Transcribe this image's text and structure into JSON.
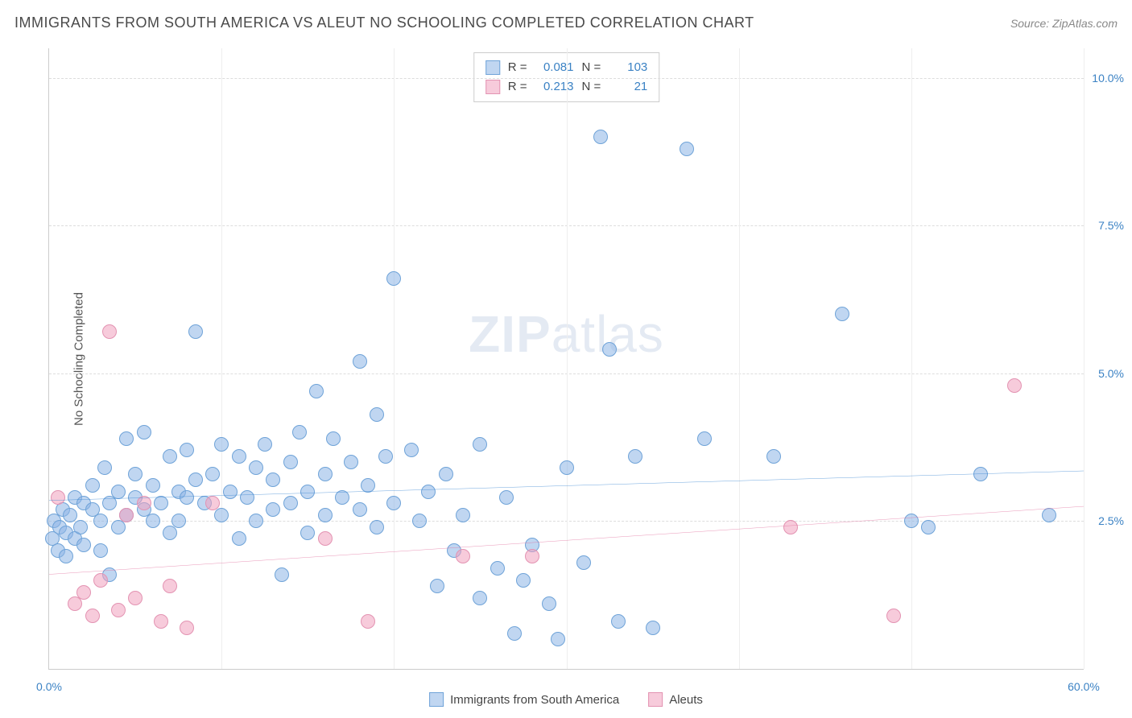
{
  "title": "IMMIGRANTS FROM SOUTH AMERICA VS ALEUT NO SCHOOLING COMPLETED CORRELATION CHART",
  "source_label": "Source: ZipAtlas.com",
  "watermark": {
    "prefix": "ZIP",
    "suffix": "atlas"
  },
  "y_axis_title": "No Schooling Completed",
  "chart": {
    "type": "scatter",
    "xlim": [
      0,
      60
    ],
    "ylim": [
      0,
      10.5
    ],
    "x_ticks": [
      0,
      10,
      20,
      30,
      40,
      50,
      60
    ],
    "y_ticks": [
      2.5,
      5.0,
      7.5,
      10.0
    ],
    "x_tick_labels": [
      "0.0%",
      "",
      "",
      "",
      "",
      "",
      "60.0%"
    ],
    "y_tick_labels": [
      "2.5%",
      "5.0%",
      "7.5%",
      "10.0%"
    ],
    "background_color": "#ffffff",
    "grid_color": "#dddddd",
    "axis_color": "#cccccc",
    "tick_label_color": "#3b82c4",
    "marker_radius": 9,
    "series": [
      {
        "name": "Immigrants from South America",
        "fill_color": "rgba(140,180,230,0.55)",
        "stroke_color": "#6fa3d8",
        "line_color": "#2f7fd0",
        "R": "0.081",
        "N": "103",
        "trend": {
          "x1": 0,
          "y1": 2.85,
          "x2": 60,
          "y2": 3.35
        },
        "points": [
          [
            0.2,
            2.2
          ],
          [
            0.3,
            2.5
          ],
          [
            0.5,
            2.0
          ],
          [
            0.6,
            2.4
          ],
          [
            0.8,
            2.7
          ],
          [
            1.0,
            1.9
          ],
          [
            1.0,
            2.3
          ],
          [
            1.2,
            2.6
          ],
          [
            1.5,
            2.2
          ],
          [
            1.5,
            2.9
          ],
          [
            1.8,
            2.4
          ],
          [
            2.0,
            2.8
          ],
          [
            2.0,
            2.1
          ],
          [
            2.5,
            2.7
          ],
          [
            2.5,
            3.1
          ],
          [
            3.0,
            2.5
          ],
          [
            3.0,
            2.0
          ],
          [
            3.2,
            3.4
          ],
          [
            3.5,
            2.8
          ],
          [
            3.5,
            1.6
          ],
          [
            4.0,
            3.0
          ],
          [
            4.0,
            2.4
          ],
          [
            4.5,
            3.9
          ],
          [
            4.5,
            2.6
          ],
          [
            5.0,
            2.9
          ],
          [
            5.0,
            3.3
          ],
          [
            5.5,
            2.7
          ],
          [
            5.5,
            4.0
          ],
          [
            6.0,
            3.1
          ],
          [
            6.0,
            2.5
          ],
          [
            6.5,
            2.8
          ],
          [
            7.0,
            3.6
          ],
          [
            7.0,
            2.3
          ],
          [
            7.5,
            3.0
          ],
          [
            7.5,
            2.5
          ],
          [
            8.0,
            3.7
          ],
          [
            8.0,
            2.9
          ],
          [
            8.5,
            5.7
          ],
          [
            8.5,
            3.2
          ],
          [
            9.0,
            2.8
          ],
          [
            9.5,
            3.3
          ],
          [
            10.0,
            3.8
          ],
          [
            10.0,
            2.6
          ],
          [
            10.5,
            3.0
          ],
          [
            11.0,
            3.6
          ],
          [
            11.0,
            2.2
          ],
          [
            11.5,
            2.9
          ],
          [
            12.0,
            3.4
          ],
          [
            12.0,
            2.5
          ],
          [
            12.5,
            3.8
          ],
          [
            13.0,
            2.7
          ],
          [
            13.0,
            3.2
          ],
          [
            13.5,
            1.6
          ],
          [
            14.0,
            3.5
          ],
          [
            14.0,
            2.8
          ],
          [
            14.5,
            4.0
          ],
          [
            15.0,
            3.0
          ],
          [
            15.0,
            2.3
          ],
          [
            15.5,
            4.7
          ],
          [
            16.0,
            3.3
          ],
          [
            16.0,
            2.6
          ],
          [
            16.5,
            3.9
          ],
          [
            17.0,
            2.9
          ],
          [
            17.5,
            3.5
          ],
          [
            18.0,
            2.7
          ],
          [
            18.0,
            5.2
          ],
          [
            18.5,
            3.1
          ],
          [
            19.0,
            4.3
          ],
          [
            19.0,
            2.4
          ],
          [
            19.5,
            3.6
          ],
          [
            20.0,
            6.6
          ],
          [
            20.0,
            2.8
          ],
          [
            21.0,
            3.7
          ],
          [
            21.5,
            2.5
          ],
          [
            22.0,
            3.0
          ],
          [
            22.5,
            1.4
          ],
          [
            23.0,
            3.3
          ],
          [
            23.5,
            2.0
          ],
          [
            24.0,
            2.6
          ],
          [
            25.0,
            1.2
          ],
          [
            25.0,
            3.8
          ],
          [
            26.0,
            1.7
          ],
          [
            26.5,
            2.9
          ],
          [
            27.0,
            0.6
          ],
          [
            27.5,
            1.5
          ],
          [
            28.0,
            2.1
          ],
          [
            29.0,
            1.1
          ],
          [
            29.5,
            0.5
          ],
          [
            30.0,
            3.4
          ],
          [
            31.0,
            1.8
          ],
          [
            32.0,
            9.0
          ],
          [
            32.5,
            5.4
          ],
          [
            33.0,
            0.8
          ],
          [
            34.0,
            3.6
          ],
          [
            35.0,
            0.7
          ],
          [
            37.0,
            8.8
          ],
          [
            38.0,
            3.9
          ],
          [
            42.0,
            3.6
          ],
          [
            46.0,
            6.0
          ],
          [
            50.0,
            2.5
          ],
          [
            51.0,
            2.4
          ],
          [
            54.0,
            3.3
          ],
          [
            58.0,
            2.6
          ]
        ]
      },
      {
        "name": "Aleuts",
        "fill_color": "rgba(240,160,190,0.55)",
        "stroke_color": "#e393b2",
        "line_color": "#e06a9a",
        "R": "0.213",
        "N": "21",
        "trend": {
          "x1": 0,
          "y1": 1.6,
          "x2": 60,
          "y2": 2.75
        },
        "points": [
          [
            0.5,
            2.9
          ],
          [
            1.5,
            1.1
          ],
          [
            2.0,
            1.3
          ],
          [
            2.5,
            0.9
          ],
          [
            3.0,
            1.5
          ],
          [
            3.5,
            5.7
          ],
          [
            4.0,
            1.0
          ],
          [
            4.5,
            2.6
          ],
          [
            5.0,
            1.2
          ],
          [
            5.5,
            2.8
          ],
          [
            6.5,
            0.8
          ],
          [
            7.0,
            1.4
          ],
          [
            8.0,
            0.7
          ],
          [
            9.5,
            2.8
          ],
          [
            16.0,
            2.2
          ],
          [
            18.5,
            0.8
          ],
          [
            24.0,
            1.9
          ],
          [
            28.0,
            1.9
          ],
          [
            43.0,
            2.4
          ],
          [
            49.0,
            0.9
          ],
          [
            56.0,
            4.8
          ]
        ]
      }
    ],
    "stats_labels": {
      "R": "R =",
      "N": "N ="
    }
  },
  "bottom_legend": [
    {
      "label": "Immigrants from South America"
    },
    {
      "label": "Aleuts"
    }
  ]
}
